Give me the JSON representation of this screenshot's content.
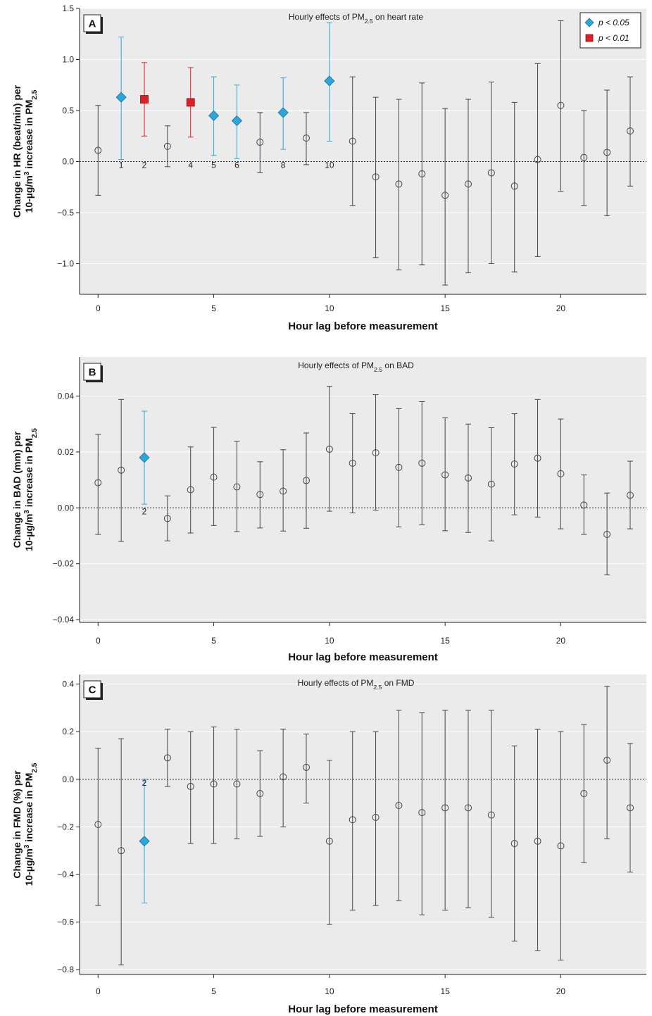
{
  "legend": {
    "items": [
      {
        "label": "p < 0.05",
        "color": "#2aa7dd",
        "shape": "diamond"
      },
      {
        "label": "p < 0.01",
        "color": "#dd1f26",
        "shape": "square"
      }
    ]
  },
  "colors": {
    "nonsig": "#444444",
    "p05": "#2aa7dd",
    "p01": "#dd1f26",
    "plot_bg": "#ebebeb"
  },
  "chart_data": [
    {
      "type": "scatter",
      "panel": "A",
      "title": "Hourly effects of PM2.5 on heart rate",
      "xlabel": "Hour lag before measurement",
      "ylabel_line1": "Change in HR (beat/min) per",
      "ylabel_line2": "10-µg/m3 increase in PM2.5",
      "xlim": [
        -0.8,
        23.7
      ],
      "ylim": [
        -1.3,
        1.5
      ],
      "xticks": [
        0,
        5,
        10,
        15,
        20
      ],
      "yticks": [
        -1.0,
        -0.5,
        0.0,
        0.5,
        1.0,
        1.5
      ],
      "ytick_labels": [
        "−1.0",
        "−0.5",
        "0.0",
        "0.5",
        "1.0",
        "1.5"
      ],
      "grid": "horizontal",
      "legend_position": "top-right",
      "x": [
        0,
        1,
        2,
        3,
        4,
        5,
        6,
        7,
        8,
        9,
        10,
        11,
        12,
        13,
        14,
        15,
        16,
        17,
        18,
        19,
        20,
        21,
        22,
        23
      ],
      "estimate": [
        0.11,
        0.63,
        0.61,
        0.15,
        0.58,
        0.45,
        0.4,
        0.19,
        0.48,
        0.23,
        0.79,
        0.2,
        -0.15,
        -0.22,
        -0.12,
        -0.33,
        -0.22,
        -0.11,
        -0.24,
        0.02,
        0.55,
        0.04,
        0.09,
        0.3
      ],
      "lower": [
        -0.33,
        0.02,
        0.25,
        -0.05,
        0.24,
        0.06,
        0.03,
        -0.11,
        0.12,
        -0.03,
        0.2,
        -0.43,
        -0.94,
        -1.06,
        -1.01,
        -1.21,
        -1.09,
        -1.0,
        -1.08,
        -0.93,
        -0.29,
        -0.43,
        -0.53,
        -0.24
      ],
      "upper": [
        0.55,
        1.22,
        0.97,
        0.35,
        0.92,
        0.83,
        0.75,
        0.48,
        0.82,
        0.48,
        1.36,
        0.83,
        0.63,
        0.61,
        0.77,
        0.52,
        0.61,
        0.78,
        0.58,
        0.96,
        1.38,
        0.5,
        0.7,
        0.83
      ],
      "significance": [
        "ns",
        "p05",
        "p01",
        "ns",
        "p01",
        "p05",
        "p05",
        "ns",
        "p05",
        "ns",
        "p05",
        "ns",
        "ns",
        "ns",
        "ns",
        "ns",
        "ns",
        "ns",
        "ns",
        "ns",
        "ns",
        "ns",
        "ns",
        "ns"
      ],
      "annotations": [
        {
          "x": 1,
          "label": "1"
        },
        {
          "x": 2,
          "label": "2"
        },
        {
          "x": 4,
          "label": "4"
        },
        {
          "x": 5,
          "label": "5"
        },
        {
          "x": 6,
          "label": "6"
        },
        {
          "x": 8,
          "label": "8"
        },
        {
          "x": 10,
          "label": "10"
        }
      ]
    },
    {
      "type": "scatter",
      "panel": "B",
      "title": "Hourly effects of PM2.5 on BAD",
      "xlabel": "Hour lag before measurement",
      "ylabel_line1": "Change in BAD (mm) per",
      "ylabel_line2": "10-µg/m3 increase in PM2.5",
      "xlim": [
        -0.8,
        23.7
      ],
      "ylim": [
        -0.041,
        0.054
      ],
      "xticks": [
        0,
        5,
        10,
        15,
        20
      ],
      "yticks": [
        -0.04,
        -0.02,
        0.0,
        0.02,
        0.04
      ],
      "ytick_labels": [
        "−0.04",
        "−0.02",
        "0.00",
        "0.02",
        "0.04"
      ],
      "grid": "horizontal",
      "x": [
        0,
        1,
        2,
        3,
        4,
        5,
        6,
        7,
        8,
        9,
        10,
        11,
        12,
        13,
        14,
        15,
        16,
        17,
        18,
        19,
        20,
        21,
        22,
        23
      ],
      "estimate": [
        0.009,
        0.0135,
        0.018,
        -0.0038,
        0.0065,
        0.011,
        0.0075,
        0.0048,
        0.006,
        0.0098,
        0.021,
        0.016,
        0.0197,
        0.0145,
        0.016,
        0.0118,
        0.0107,
        0.0085,
        0.0157,
        0.0178,
        0.0122,
        0.001,
        -0.0095,
        0.0045
      ],
      "lower": [
        -0.0095,
        -0.012,
        0.0013,
        -0.0118,
        -0.009,
        -0.0063,
        -0.0085,
        -0.0072,
        -0.0083,
        -0.0073,
        -0.0012,
        -0.0018,
        -0.0008,
        -0.0068,
        -0.006,
        -0.0082,
        -0.0088,
        -0.0118,
        -0.0025,
        -0.0033,
        -0.0075,
        -0.0095,
        -0.024,
        -0.0075
      ],
      "upper": [
        0.0263,
        0.0388,
        0.0346,
        0.0043,
        0.0218,
        0.0288,
        0.0238,
        0.0165,
        0.0208,
        0.0268,
        0.0435,
        0.0337,
        0.0405,
        0.0355,
        0.038,
        0.0322,
        0.03,
        0.0287,
        0.0337,
        0.0388,
        0.0318,
        0.0118,
        0.0053,
        0.0167
      ],
      "significance": [
        "ns",
        "ns",
        "p05",
        "ns",
        "ns",
        "ns",
        "ns",
        "ns",
        "ns",
        "ns",
        "ns",
        "ns",
        "ns",
        "ns",
        "ns",
        "ns",
        "ns",
        "ns",
        "ns",
        "ns",
        "ns",
        "ns",
        "ns",
        "ns"
      ],
      "annotations": [
        {
          "x": 2,
          "label": "2"
        }
      ]
    },
    {
      "type": "scatter",
      "panel": "C",
      "title": "Hourly effects of PM2.5 on FMD",
      "xlabel": "Hour lag before measurement",
      "ylabel_line1": "Change in FMD (%) per",
      "ylabel_line2": "10-µg/m3 increase in PM2.5",
      "xlim": [
        -0.8,
        23.7
      ],
      "ylim": [
        -0.82,
        0.44
      ],
      "xticks": [
        0,
        5,
        10,
        15,
        20
      ],
      "yticks": [
        -0.8,
        -0.6,
        -0.4,
        -0.2,
        0.0,
        0.2,
        0.4
      ],
      "ytick_labels": [
        "−0.8",
        "−0.6",
        "−0.4",
        "−0.2",
        "0.0",
        "0.2",
        "0.4"
      ],
      "grid": "horizontal",
      "x": [
        0,
        1,
        2,
        3,
        4,
        5,
        6,
        7,
        8,
        9,
        10,
        11,
        12,
        13,
        14,
        15,
        16,
        17,
        18,
        19,
        20,
        21,
        22,
        23
      ],
      "estimate": [
        -0.19,
        -0.3,
        -0.26,
        0.09,
        -0.03,
        -0.02,
        -0.02,
        -0.06,
        0.01,
        0.05,
        -0.26,
        -0.17,
        -0.16,
        -0.11,
        -0.14,
        -0.12,
        -0.12,
        -0.15,
        -0.27,
        -0.26,
        -0.28,
        -0.06,
        0.08,
        -0.12
      ],
      "lower": [
        -0.53,
        -0.78,
        -0.52,
        -0.03,
        -0.27,
        -0.27,
        -0.25,
        -0.24,
        -0.2,
        -0.1,
        -0.61,
        -0.55,
        -0.53,
        -0.51,
        -0.57,
        -0.55,
        -0.54,
        -0.58,
        -0.68,
        -0.72,
        -0.76,
        -0.35,
        -0.25,
        -0.39
      ],
      "upper": [
        0.13,
        0.17,
        0.0,
        0.21,
        0.2,
        0.22,
        0.21,
        0.12,
        0.21,
        0.19,
        0.08,
        0.2,
        0.2,
        0.29,
        0.28,
        0.29,
        0.29,
        0.29,
        0.14,
        0.21,
        0.2,
        0.23,
        0.39,
        0.15
      ],
      "significance": [
        "ns",
        "ns",
        "p05",
        "ns",
        "ns",
        "ns",
        "ns",
        "ns",
        "ns",
        "ns",
        "ns",
        "ns",
        "ns",
        "ns",
        "ns",
        "ns",
        "ns",
        "ns",
        "ns",
        "ns",
        "ns",
        "ns",
        "ns",
        "ns"
      ],
      "annotations": [
        {
          "x": 2,
          "label": "2"
        }
      ]
    }
  ]
}
